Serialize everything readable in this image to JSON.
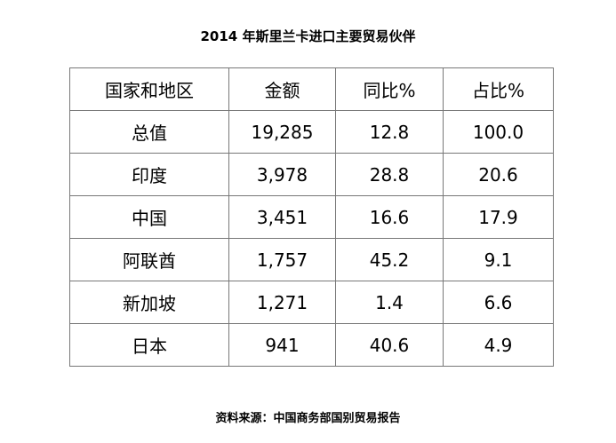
{
  "header": {
    "title": "2014 年斯里兰卡进口主要贸易伙伴"
  },
  "table": {
    "columns": [
      "国家和地区",
      "金额",
      "同比%",
      "占比%"
    ],
    "rows": [
      [
        "总值",
        "19,285",
        "12.8",
        "100.0"
      ],
      [
        "印度",
        "3,978",
        "28.8",
        "20.6"
      ],
      [
        "中国",
        "3,451",
        "16.6",
        "17.9"
      ],
      [
        "阿联酋",
        "1,757",
        "45.2",
        "9.1"
      ],
      [
        "新加坡",
        "1,271",
        "1.4",
        "6.6"
      ],
      [
        "日本",
        "941",
        "40.6",
        "4.9"
      ]
    ]
  },
  "footer": {
    "source": "资料来源：中国商务部国别贸易报告"
  }
}
